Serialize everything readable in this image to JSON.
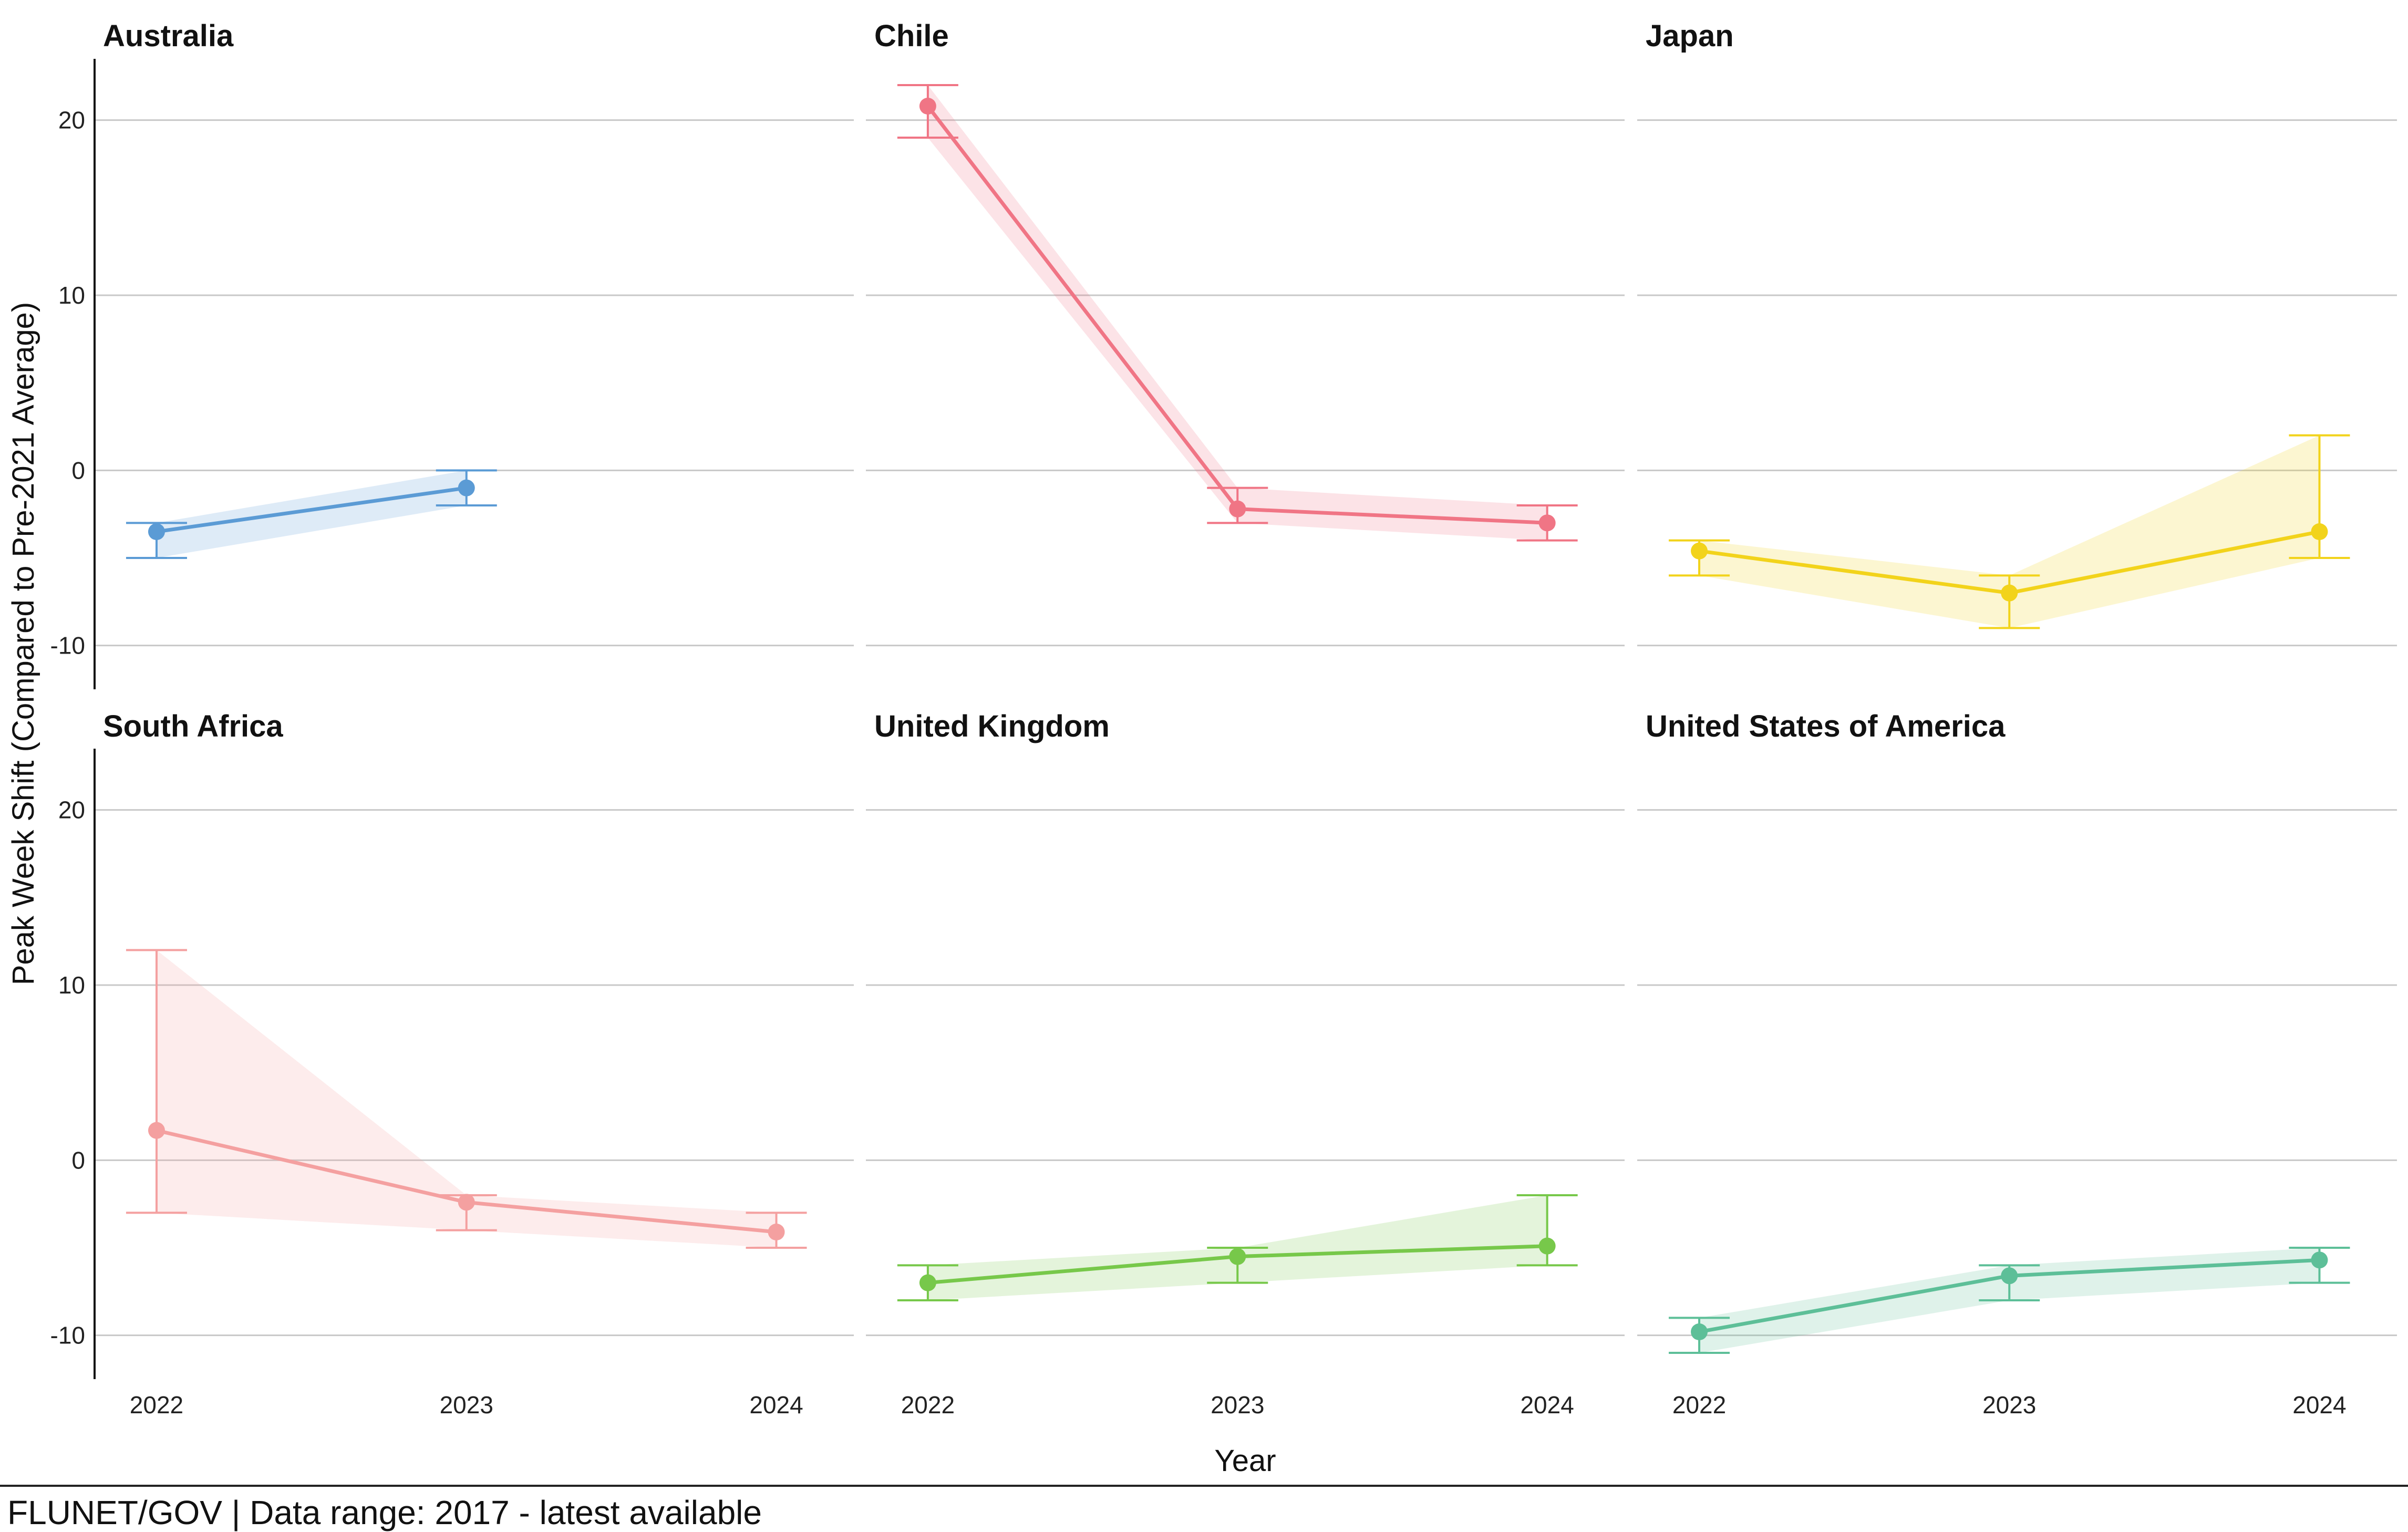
{
  "chart_data": {
    "type": "line",
    "layout": "facet-grid 2x3, shared axes",
    "xlabel": "Year",
    "ylabel": "Peak Week Shift (Compared to Pre-2021 Average)",
    "x_ticks": [
      "2022",
      "2023",
      "2024"
    ],
    "y_ticks": [
      -10,
      0,
      10,
      20
    ],
    "ylim": [
      -12.5,
      23.5
    ],
    "xlim": [
      2021.8,
      2024.25
    ],
    "grid": "horizontal major gridlines",
    "legend": "none",
    "series": [
      {
        "name": "Australia",
        "color": "#5b9bd5",
        "points": [
          {
            "x": 2022,
            "y": -3.5,
            "low": -5,
            "high": -3
          },
          {
            "x": 2023,
            "y": -1,
            "low": -2,
            "high": 0
          }
        ]
      },
      {
        "name": "Chile",
        "color": "#f07585",
        "points": [
          {
            "x": 2022,
            "y": 20.8,
            "low": 19,
            "high": 22
          },
          {
            "x": 2023,
            "y": -2.2,
            "low": -3,
            "high": -1
          },
          {
            "x": 2024,
            "y": -3,
            "low": -4,
            "high": -2
          }
        ]
      },
      {
        "name": "Japan",
        "color": "#f2d31b",
        "points": [
          {
            "x": 2022,
            "y": -4.6,
            "low": -6,
            "high": -4
          },
          {
            "x": 2023,
            "y": -7,
            "low": -9,
            "high": -6
          },
          {
            "x": 2024,
            "y": -3.5,
            "low": -5,
            "high": 2
          }
        ]
      },
      {
        "name": "South Africa",
        "color": "#f4a0a0",
        "points": [
          {
            "x": 2022,
            "y": 1.7,
            "low": -3,
            "high": 12
          },
          {
            "x": 2023,
            "y": -2.4,
            "low": -4,
            "high": -2
          },
          {
            "x": 2024,
            "y": -4.1,
            "low": -5,
            "high": -3
          }
        ]
      },
      {
        "name": "United Kingdom",
        "color": "#77c84a",
        "points": [
          {
            "x": 2022,
            "y": -7,
            "low": -8,
            "high": -6
          },
          {
            "x": 2023,
            "y": -5.5,
            "low": -7,
            "high": -5
          },
          {
            "x": 2024,
            "y": -4.9,
            "low": -6,
            "high": -2
          }
        ]
      },
      {
        "name": "United States of America",
        "color": "#5dbf98",
        "points": [
          {
            "x": 2022,
            "y": -9.8,
            "low": -11,
            "high": -9
          },
          {
            "x": 2023,
            "y": -6.6,
            "low": -8,
            "high": -6
          },
          {
            "x": 2024,
            "y": -5.7,
            "low": -7,
            "high": -5
          }
        ]
      }
    ]
  },
  "caption": "FLUNET/GOV | Data range: 2017 - latest available"
}
